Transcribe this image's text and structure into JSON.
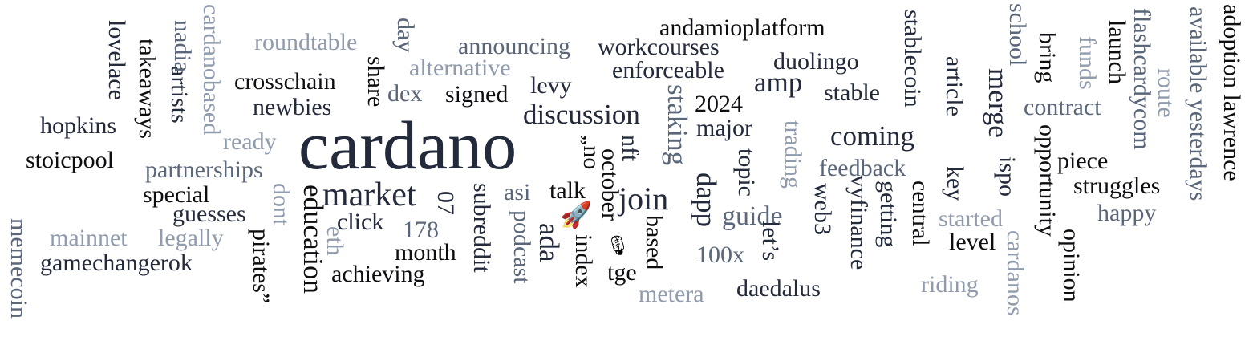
{
  "palette": {
    "black": "#0e0e12",
    "navy": "#232a3b",
    "slate": "#5a6679",
    "light": "#909cad"
  },
  "words": {
    "cardano": "cardano",
    "market": "market",
    "join": "join",
    "discussion": "discussion",
    "coming": "coming",
    "amp": "amp",
    "staking": "staking",
    "education": "education",
    "guide": "guide",
    "dapp": "dapp",
    "andamioplatform": "andamioplatform",
    "workcourses": "workcourses",
    "announcing": "announcing",
    "roundtable": "roundtable",
    "alternative": "alternative",
    "enforceable": "enforceable",
    "duolingo": "duolingo",
    "crosschain": "crosschain",
    "newbies": "newbies",
    "signed": "signed",
    "dex": "dex",
    "levy": "levy",
    "share": "share",
    "2024": "2024",
    "major": "major",
    "stable": "stable",
    "stablecoin": "stablecoin",
    "article": "article",
    "merge": "merge",
    "hopkins": "hopkins",
    "stoicpool": "stoicpool",
    "partnerships": "partnerships",
    "ready": "ready",
    "special": "special",
    "guesses": "guesses",
    "mainnet": "mainnet",
    "legally": "legally",
    "gamechangerok": "gamechangerok",
    "click": "click",
    "n178": "178",
    "month": "month",
    "achieving": "achieving",
    "asi": "asi",
    "talk": "talk",
    "ada": "ada",
    "index": "index",
    "tge": "tge",
    "metera": "metera",
    "daedalus": "daedalus",
    "n100x": "100x",
    "feedback": "feedback",
    "getting": "getting",
    "central": "central",
    "started": "started",
    "level": "level",
    "riding": "riding",
    "piece": "piece",
    "struggles": "struggles",
    "happy": "happy",
    "contract": "contract",
    "funds": "funds",
    "launch": "launch",
    "bring": "bring",
    "school": "school",
    "flashcardycom": "flashcardycom",
    "route": "route",
    "available": "available yesterdays",
    "adoption": "adoption lawrence",
    "opportunity": "opportunity",
    "ispo": "ispo",
    "key": "key",
    "cardanos": "cardanos",
    "opinion": "opinion",
    "lovelace": "lovelace",
    "takeaways": "takeaways",
    "nadia": "nadia",
    "artists": "artists",
    "cardanobased": "cardanobased",
    "memecoin": "memecoin",
    "dont": "dont",
    "pirates": "pirates”",
    "eth": "eth",
    "n07": "07",
    "subreddit": "subreddit",
    "podcast": "podcast",
    "october": "october",
    "no": "„no",
    "nft": "nft",
    "based": "based",
    "topic": "topic",
    "lets": "let’s",
    "trading": "trading",
    "web3": "web3",
    "vyfinance": "vyfinance",
    "day": "day"
  },
  "emoji": {
    "rocket": "🚀",
    "microphone": "🎙"
  }
}
